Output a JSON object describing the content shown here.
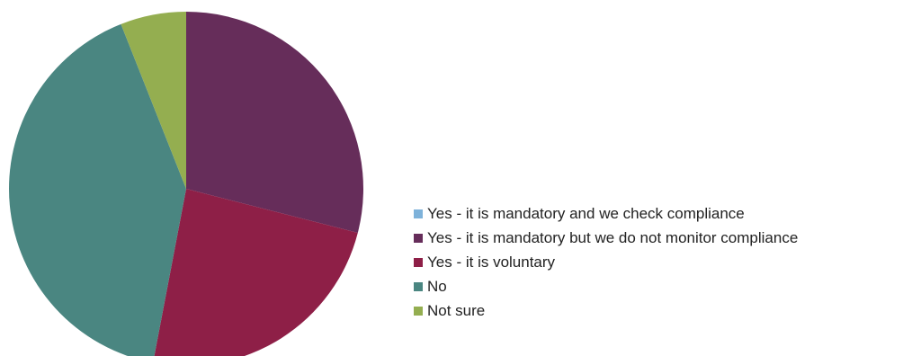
{
  "chart_data": {
    "type": "pie",
    "categories": [
      "Yes - it is mandatory and we check compliance",
      "Yes - it is mandatory but we do not monitor compliance",
      "Yes - it is voluntary",
      "No",
      "Not sure"
    ],
    "values": [
      0,
      29,
      24,
      41,
      6
    ],
    "value_unit": "%",
    "colors": [
      "#7eb2da",
      "#662d5a",
      "#8e1f47",
      "#4a8681",
      "#94ae50"
    ],
    "start_angle_deg": 0,
    "direction": "clockwise",
    "legend_position": "right",
    "title": ""
  }
}
